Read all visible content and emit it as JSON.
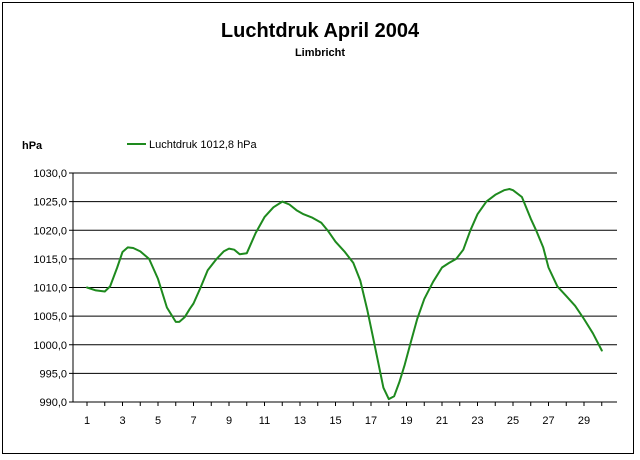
{
  "chart_data": {
    "type": "line",
    "title": "Luchtdruk April 2004",
    "subtitle": "Limbricht",
    "ylabel": "hPa",
    "xlabel": "",
    "ylim": [
      990.0,
      1030.0
    ],
    "xlim": [
      1,
      30
    ],
    "y_ticks": [
      "990,0",
      "995,0",
      "1000,0",
      "1005,0",
      "1010,0",
      "1015,0",
      "1020,0",
      "1025,0",
      "1030,0"
    ],
    "x_ticks": [
      "1",
      "3",
      "5",
      "7",
      "9",
      "11",
      "13",
      "15",
      "17",
      "19",
      "21",
      "23",
      "25",
      "27",
      "29"
    ],
    "grid": "horizontal",
    "legend_position": "top-left",
    "colors": {
      "series": "#1e8a1e",
      "grid": "#000000"
    },
    "series": [
      {
        "name": "Luchtdruk 1012,8 hPa",
        "x": [
          1,
          1.5,
          2,
          2.3,
          2.7,
          3,
          3.3,
          3.6,
          4,
          4.5,
          5,
          5.5,
          6,
          6.2,
          6.5,
          6.8,
          7,
          7.4,
          7.8,
          8.3,
          8.7,
          9,
          9.3,
          9.6,
          10,
          10.5,
          11,
          11.5,
          12,
          12.4,
          12.8,
          13.2,
          13.7,
          14.2,
          14.6,
          15,
          15.5,
          16,
          16.4,
          16.8,
          17.1,
          17.4,
          17.7,
          18,
          18.3,
          18.6,
          18.9,
          19.2,
          19.6,
          20,
          20.5,
          21,
          21.4,
          21.8,
          22.2,
          22.6,
          23,
          23.5,
          24,
          24.5,
          24.8,
          25,
          25.5,
          26,
          26.3,
          26.7,
          27,
          27.5,
          28,
          28.5,
          29,
          29.5,
          30
        ],
        "values": [
          1010.0,
          1009.5,
          1009.3,
          1010.2,
          1013.5,
          1016.2,
          1017.0,
          1016.9,
          1016.3,
          1015.0,
          1011.5,
          1006.5,
          1004.0,
          1004.0,
          1004.8,
          1006.3,
          1007.2,
          1010.0,
          1013.0,
          1015.0,
          1016.3,
          1016.8,
          1016.6,
          1015.8,
          1016.0,
          1019.5,
          1022.3,
          1024.0,
          1025.0,
          1024.5,
          1023.5,
          1022.8,
          1022.2,
          1021.3,
          1019.8,
          1018.0,
          1016.3,
          1014.3,
          1011.2,
          1006.0,
          1001.5,
          997.0,
          992.5,
          990.5,
          991.0,
          993.5,
          996.5,
          1000.0,
          1004.5,
          1008.0,
          1011.0,
          1013.5,
          1014.3,
          1015.0,
          1016.6,
          1020.0,
          1022.8,
          1025.0,
          1026.2,
          1027.0,
          1027.2,
          1027.0,
          1025.8,
          1022.0,
          1020.0,
          1017.0,
          1013.5,
          1010.2,
          1008.5,
          1006.8,
          1004.5,
          1002.0,
          999.0
        ]
      }
    ]
  }
}
